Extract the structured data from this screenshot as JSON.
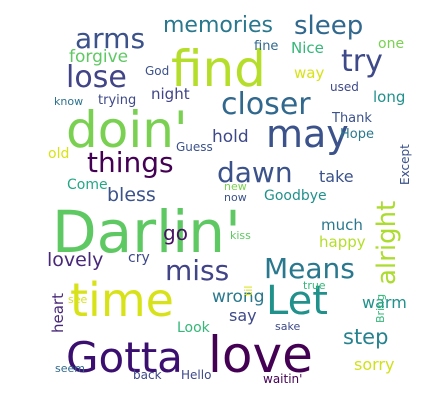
{
  "words": [
    {
      "text": "Darlin'",
      "color": "#5ec962"
    },
    {
      "text": "time",
      "color": "#d8e219"
    },
    {
      "text": "Gotta",
      "color": "#3b0f70"
    },
    {
      "text": "love",
      "color": "#440154"
    },
    {
      "text": "doin'",
      "color": "#7ad151"
    },
    {
      "text": "find",
      "color": "#b5de2b"
    },
    {
      "text": "may",
      "color": "#3b528b"
    },
    {
      "text": "Let",
      "color": "#21918c"
    },
    {
      "text": "closer",
      "color": "#31688e"
    },
    {
      "text": "things",
      "color": "#440154"
    },
    {
      "text": "dawn",
      "color": "#3b528b"
    },
    {
      "text": "miss",
      "color": "#414487"
    },
    {
      "text": "Means",
      "color": "#2a788e"
    },
    {
      "text": "alright",
      "color": "#addc30"
    },
    {
      "text": "arms",
      "color": "#3b528b"
    },
    {
      "text": "memories",
      "color": "#2a788e"
    },
    {
      "text": "sleep",
      "color": "#31688e"
    },
    {
      "text": "try",
      "color": "#3e4989"
    },
    {
      "text": "lose",
      "color": "#414487"
    },
    {
      "text": "forgive",
      "color": "#5ec962"
    },
    {
      "text": "hold",
      "color": "#3e4989"
    },
    {
      "text": "bless",
      "color": "#3b528b"
    },
    {
      "text": "go",
      "color": "#471164"
    },
    {
      "text": "lovely",
      "color": "#482878"
    },
    {
      "text": "wrong",
      "color": "#2a788e"
    },
    {
      "text": "step",
      "color": "#26828e"
    },
    {
      "text": "warm",
      "color": "#21918c"
    },
    {
      "text": "say",
      "color": "#3e4989"
    },
    {
      "text": "sorry",
      "color": "#d0e11c"
    },
    {
      "text": "heart",
      "color": "#482878"
    },
    {
      "text": "Look",
      "color": "#35b779"
    },
    {
      "text": "take",
      "color": "#3b528b"
    },
    {
      "text": "much",
      "color": "#2a788e"
    },
    {
      "text": "happy",
      "color": "#b5de2b"
    },
    {
      "text": "Goodbye",
      "color": "#21918c"
    },
    {
      "text": "Hope",
      "color": "#2a788e"
    },
    {
      "text": "Thank",
      "color": "#3b528b"
    },
    {
      "text": "long",
      "color": "#21918c"
    },
    {
      "text": "used",
      "color": "#3e4989"
    },
    {
      "text": "way",
      "color": "#d8e219"
    },
    {
      "text": "Nice",
      "color": "#35b779"
    },
    {
      "text": "fine",
      "color": "#31688e"
    },
    {
      "text": "one",
      "color": "#7ad151"
    },
    {
      "text": "God",
      "color": "#3b528b"
    },
    {
      "text": "know",
      "color": "#2c728e"
    },
    {
      "text": "trying",
      "color": "#3e4989"
    },
    {
      "text": "night",
      "color": "#414487"
    },
    {
      "text": "Guess",
      "color": "#3b528b"
    },
    {
      "text": "old",
      "color": "#d8e219"
    },
    {
      "text": "Come",
      "color": "#22a884"
    },
    {
      "text": "Except",
      "color": "#3b528b"
    },
    {
      "text": "new",
      "color": "#7ad151"
    },
    {
      "text": "now",
      "color": "#3b528b"
    },
    {
      "text": "cry",
      "color": "#3e4989"
    },
    {
      "text": "kiss",
      "color": "#5ec962"
    },
    {
      "text": "til",
      "color": "#d8e219"
    },
    {
      "text": "true",
      "color": "#35b779"
    },
    {
      "text": "Bring",
      "color": "#35b779"
    },
    {
      "text": "see",
      "color": "#d8e219"
    },
    {
      "text": "sake",
      "color": "#3e4989"
    },
    {
      "text": "seem",
      "color": "#31688e"
    },
    {
      "text": "back",
      "color": "#3e4989"
    },
    {
      "text": "Hello",
      "color": "#3e4989"
    },
    {
      "text": "waitin'",
      "color": "#440154"
    }
  ]
}
